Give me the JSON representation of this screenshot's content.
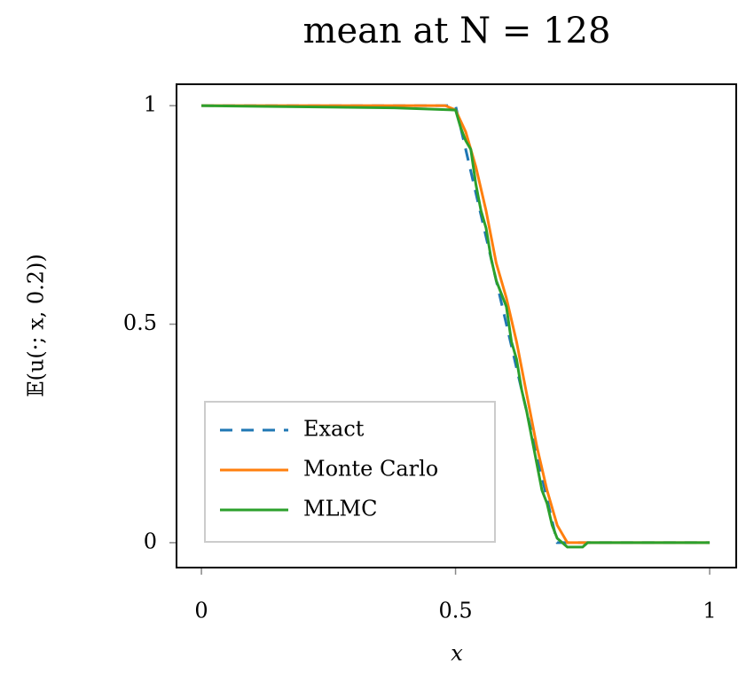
{
  "chart_data": {
    "type": "line",
    "title": "mean at N = 128",
    "xlabel": "x",
    "ylabel": "𝔼(u(·; x, 0.2))",
    "xlim": [
      -0.049,
      1.054
    ],
    "ylim": [
      -0.057,
      1.049
    ],
    "xticks": [
      0,
      0.5,
      1
    ],
    "yticks": [
      0,
      0.5,
      1
    ],
    "legend": "lower left",
    "series": [
      {
        "name": "Exact",
        "color": "#1f77b4",
        "dash": true,
        "x": [
          0,
          0.5,
          0.55,
          0.6,
          0.65,
          0.7,
          1
        ],
        "values": [
          1,
          1,
          0.75,
          0.5,
          0.25,
          0,
          0
        ]
      },
      {
        "name": "Monte Carlo",
        "color": "#ff7f0e",
        "dash": false,
        "x": [
          0,
          0.48,
          0.5,
          0.52,
          0.54,
          0.56,
          0.58,
          0.6,
          0.62,
          0.64,
          0.66,
          0.68,
          0.7,
          0.72,
          1
        ],
        "values": [
          1,
          1,
          0.99,
          0.94,
          0.86,
          0.76,
          0.64,
          0.56,
          0.46,
          0.34,
          0.22,
          0.12,
          0.04,
          0,
          0
        ]
      },
      {
        "name": "MLMC",
        "color": "#2ca02c",
        "dash": false,
        "x": [
          0,
          0.38,
          0.5,
          0.51,
          0.52,
          0.53,
          0.54,
          0.55,
          0.56,
          0.57,
          0.58,
          0.59,
          0.6,
          0.61,
          0.62,
          0.63,
          0.64,
          0.65,
          0.66,
          0.67,
          0.68,
          0.69,
          0.7,
          0.71,
          0.72,
          0.75,
          0.76,
          1
        ],
        "values": [
          1,
          0.995,
          0.99,
          0.95,
          0.92,
          0.9,
          0.82,
          0.76,
          0.72,
          0.65,
          0.6,
          0.57,
          0.54,
          0.46,
          0.42,
          0.35,
          0.3,
          0.24,
          0.18,
          0.12,
          0.09,
          0.04,
          0.01,
          0,
          -0.01,
          -0.01,
          0,
          0
        ]
      }
    ]
  }
}
